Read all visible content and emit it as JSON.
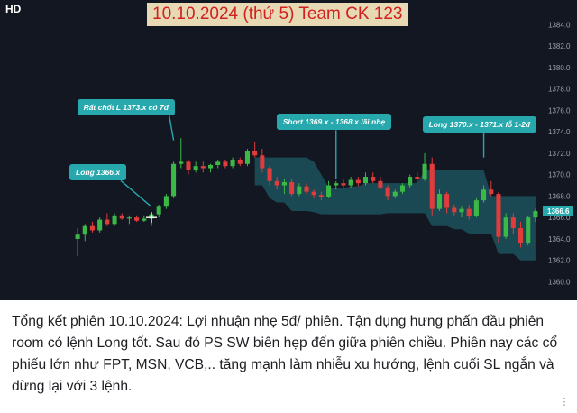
{
  "header": {
    "hd_badge": "HD",
    "title": "10.10.2024 (thứ 5) Team CK 123"
  },
  "caption": {
    "text": "Tổng kết phiên 10.10.2024: Lợi nhuận nhẹ 5đ/ phiên. Tận dụng hưng phấn đầu phiên room có lệnh Long tốt. Sau đó PS SW biên hẹp đến giữa phiên chiều. Phiên nay các cổ phiếu lớn như FPT, MSN, VCB,.. tăng mạnh làm nhiễu xu hướng, lệnh cuối SL ngắn và dừng lại với 3 lệnh."
  },
  "colors": {
    "background": "#131722",
    "up": "#3cb846",
    "down": "#e03c3c",
    "cloud": "#1d5b66",
    "annotation": "#26a8ad",
    "last_price_tag": "#26a8ad"
  },
  "chart_data": {
    "type": "candlestick",
    "y_ticks": [
      "1384.0",
      "1382.0",
      "1380.0",
      "1378.0",
      "1376.0",
      "1374.0",
      "1372.0",
      "1370.0",
      "1368.0",
      "1366.0",
      "1364.0",
      "1362.0",
      "1360.0"
    ],
    "ylim": [
      1359.2,
      1385.2
    ],
    "last_price": "1366.6",
    "annotations": [
      {
        "text": "Long 1366.x",
        "x_index": 10,
        "price": 1367.0
      },
      {
        "text": "Rất chốt L 1373.x có 7đ",
        "x_index": 13,
        "price": 1373.2
      },
      {
        "text": "Short 1369.x - 1368.x lãi nhẹ",
        "x_index": 35,
        "price": 1369.6
      },
      {
        "text": "Long 1370.x - 1371.x lỗ 1-2đ",
        "x_index": 55,
        "price": 1371.6
      }
    ],
    "candles": [
      [
        1364.0,
        1365.0,
        1362.4,
        1364.4
      ],
      [
        1364.4,
        1365.4,
        1363.8,
        1365.2
      ],
      [
        1365.2,
        1365.6,
        1364.6,
        1364.8
      ],
      [
        1364.8,
        1366.0,
        1364.6,
        1365.8
      ],
      [
        1365.8,
        1366.4,
        1365.2,
        1365.4
      ],
      [
        1365.4,
        1366.4,
        1365.2,
        1366.2
      ],
      [
        1366.2,
        1366.4,
        1365.8,
        1365.9
      ],
      [
        1365.9,
        1366.2,
        1365.4,
        1366.0
      ],
      [
        1366.0,
        1366.2,
        1365.6,
        1365.7
      ],
      [
        1365.7,
        1366.2,
        1365.6,
        1365.9
      ],
      [
        1365.9,
        1366.4,
        1365.2,
        1366.3
      ],
      [
        1366.3,
        1367.2,
        1366.0,
        1367.0
      ],
      [
        1367.0,
        1368.2,
        1366.8,
        1368.0
      ],
      [
        1368.0,
        1371.2,
        1367.8,
        1371.0
      ],
      [
        1371.0,
        1373.4,
        1370.6,
        1371.2
      ],
      [
        1371.2,
        1371.4,
        1370.0,
        1370.4
      ],
      [
        1370.4,
        1371.2,
        1370.2,
        1370.8
      ],
      [
        1370.8,
        1371.2,
        1370.2,
        1370.6
      ],
      [
        1370.6,
        1371.0,
        1370.2,
        1370.9
      ],
      [
        1370.9,
        1371.4,
        1370.6,
        1371.2
      ],
      [
        1371.2,
        1371.4,
        1370.6,
        1370.8
      ],
      [
        1370.8,
        1371.6,
        1370.6,
        1371.4
      ],
      [
        1371.4,
        1371.6,
        1370.8,
        1371.0
      ],
      [
        1371.0,
        1372.4,
        1370.8,
        1372.2
      ],
      [
        1372.2,
        1373.0,
        1371.6,
        1371.8
      ],
      [
        1371.8,
        1372.4,
        1370.2,
        1370.6
      ],
      [
        1370.6,
        1370.8,
        1369.0,
        1369.4
      ],
      [
        1369.4,
        1369.8,
        1368.6,
        1369.0
      ],
      [
        1369.0,
        1369.6,
        1368.2,
        1369.3
      ],
      [
        1369.3,
        1369.6,
        1368.0,
        1368.2
      ],
      [
        1368.2,
        1369.2,
        1368.0,
        1368.9
      ],
      [
        1368.9,
        1369.2,
        1368.2,
        1368.4
      ],
      [
        1368.4,
        1368.6,
        1367.8,
        1368.1
      ],
      [
        1368.1,
        1368.4,
        1367.6,
        1367.9
      ],
      [
        1367.9,
        1369.4,
        1367.8,
        1369.0
      ],
      [
        1369.0,
        1369.4,
        1368.6,
        1369.2
      ],
      [
        1369.2,
        1369.6,
        1368.8,
        1369.0
      ],
      [
        1369.0,
        1369.8,
        1368.8,
        1369.5
      ],
      [
        1369.5,
        1369.8,
        1368.9,
        1369.2
      ],
      [
        1369.2,
        1370.2,
        1369.0,
        1369.8
      ],
      [
        1369.8,
        1370.2,
        1369.2,
        1369.4
      ],
      [
        1369.4,
        1369.8,
        1368.6,
        1368.8
      ],
      [
        1368.8,
        1369.0,
        1367.6,
        1368.0
      ],
      [
        1368.0,
        1368.6,
        1367.8,
        1368.4
      ],
      [
        1368.4,
        1369.2,
        1368.2,
        1369.0
      ],
      [
        1369.0,
        1370.0,
        1368.8,
        1369.8
      ],
      [
        1369.8,
        1370.2,
        1369.2,
        1369.6
      ],
      [
        1369.6,
        1372.0,
        1369.4,
        1371.0
      ],
      [
        1371.0,
        1371.6,
        1366.2,
        1366.8
      ],
      [
        1366.8,
        1368.6,
        1366.6,
        1368.2
      ],
      [
        1368.2,
        1368.4,
        1366.4,
        1366.9
      ],
      [
        1366.9,
        1367.2,
        1366.2,
        1366.5
      ],
      [
        1366.5,
        1367.0,
        1366.0,
        1366.8
      ],
      [
        1366.8,
        1367.2,
        1365.8,
        1366.1
      ],
      [
        1366.1,
        1367.8,
        1366.0,
        1367.6
      ],
      [
        1367.6,
        1369.0,
        1367.4,
        1368.6
      ],
      [
        1368.6,
        1369.4,
        1368.0,
        1368.2
      ],
      [
        1368.2,
        1368.4,
        1363.6,
        1364.2
      ],
      [
        1364.2,
        1366.4,
        1364.0,
        1366.0
      ],
      [
        1366.0,
        1366.4,
        1364.4,
        1365.0
      ],
      [
        1365.0,
        1365.6,
        1363.2,
        1363.6
      ],
      [
        1363.6,
        1366.2,
        1363.4,
        1366.0
      ],
      [
        1366.0,
        1366.8,
        1365.6,
        1366.6
      ]
    ]
  }
}
